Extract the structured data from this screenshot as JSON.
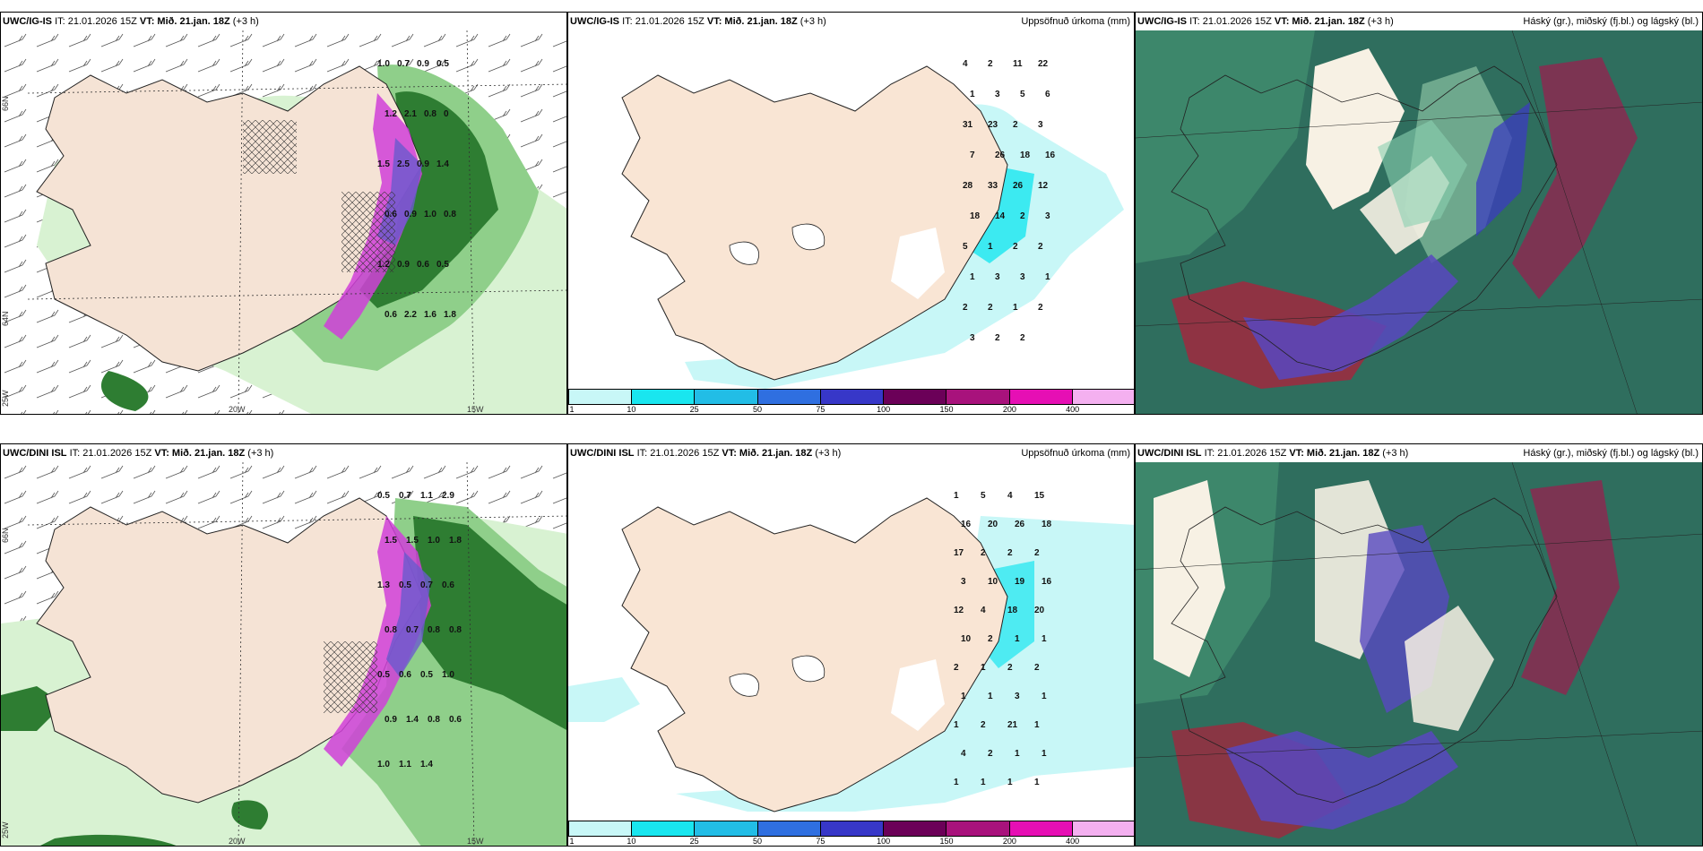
{
  "panels": [
    {
      "model": "UWC/IG-IS",
      "it": "IT: 21.01.2026 15Z",
      "vt_label": "VT:",
      "vt": "Mið. 21.jan. 18Z",
      "lead": "(+3 h)",
      "right": ""
    },
    {
      "model": "UWC/IG-IS",
      "it": "IT: 21.01.2026 15Z",
      "vt_label": "VT:",
      "vt": "Mið. 21.jan. 18Z",
      "lead": "(+3 h)",
      "right": "Uppsöfnuð úrkoma (mm)"
    },
    {
      "model": "UWC/IG-IS",
      "it": "IT: 21.01.2026 15Z",
      "vt_label": "VT:",
      "vt": "Mið. 21.jan. 18Z",
      "lead": "(+3 h)",
      "right": "Háský (gr.), miðský (fj.bl.) og lágský (bl.)"
    },
    {
      "model": "UWC/DINI ISL",
      "it": "IT: 21.01.2026 15Z",
      "vt_label": "VT:",
      "vt": "Mið. 21.jan. 18Z",
      "lead": "(+3 h)",
      "right": ""
    },
    {
      "model": "UWC/DINI ISL",
      "it": "IT: 21.01.2026 15Z",
      "vt_label": "VT:",
      "vt": "Mið. 21.jan. 18Z",
      "lead": "(+3 h)",
      "right": "Uppsöfnuð úrkoma (mm)"
    },
    {
      "model": "UWC/DINI ISL",
      "it": "IT: 21.01.2026 15Z",
      "vt_label": "VT:",
      "vt": "Mið. 21.jan. 18Z",
      "lead": "(+3 h)",
      "right": "Háský (gr.), miðský (fj.bl.) og lágský (bl.)"
    }
  ],
  "axis_labels": {
    "lon20": "20W",
    "lon15": "15W",
    "lat66": "66N",
    "lat64": "64N",
    "lon25": "25W"
  },
  "colorbar": {
    "ticks": [
      "1",
      "10",
      "25",
      "50",
      "75",
      "100",
      "150",
      "200",
      "400"
    ],
    "colors": [
      "#c8f7f7",
      "#19e6ef",
      "#22bde6",
      "#2f6fe0",
      "#3737c8",
      "#6b0058",
      "#a8127c",
      "#e60fb4",
      "#f4b0f0"
    ]
  },
  "values_top_left": [
    "1.0",
    "0.7",
    "0.9",
    "0.5",
    "1.2",
    "2.1",
    "0.8",
    "0",
    "1.5",
    "2.5",
    "0.9",
    "1.4",
    "0.6",
    "0.9",
    "1.0",
    "0.8",
    "1.2",
    "0.9",
    "0.6",
    "0.5",
    "0.6",
    "2.2",
    "1.6",
    "1.8"
  ],
  "values_top_mid": [
    "4",
    "2",
    "11",
    "22",
    "1",
    "3",
    "5",
    "6",
    "31",
    "23",
    "2",
    "3",
    "7",
    "26",
    "18",
    "16",
    "28",
    "33",
    "26",
    "12",
    "18",
    "14",
    "2",
    "3",
    "5",
    "1",
    "2",
    "2",
    "1",
    "3",
    "3",
    "1",
    "2",
    "2",
    "1",
    "2",
    "3",
    "2",
    "2"
  ],
  "values_bot_left": [
    "0.5",
    "0.7",
    "1.1",
    "2.9",
    "1.5",
    "1.5",
    "1.0",
    "1.8",
    "1.3",
    "0.5",
    "0.7",
    "0.6",
    "0.8",
    "0.7",
    "0.8",
    "0.8",
    "0.5",
    "0.6",
    "0.5",
    "1.0",
    "0.9",
    "1.4",
    "0.8",
    "0.6",
    "1.0",
    "1.1",
    "1.4"
  ],
  "values_bot_mid": [
    "1",
    "5",
    "4",
    "15",
    "16",
    "20",
    "26",
    "18",
    "17",
    "2",
    "2",
    "2",
    "3",
    "10",
    "19",
    "16",
    "12",
    "4",
    "18",
    "20",
    "10",
    "2",
    "1",
    "1",
    "2",
    "1",
    "2",
    "2",
    "1",
    "1",
    "3",
    "1",
    "1",
    "2",
    "21",
    "1",
    "4",
    "2",
    "1",
    "1",
    "1",
    "1",
    "1",
    "1"
  ]
}
